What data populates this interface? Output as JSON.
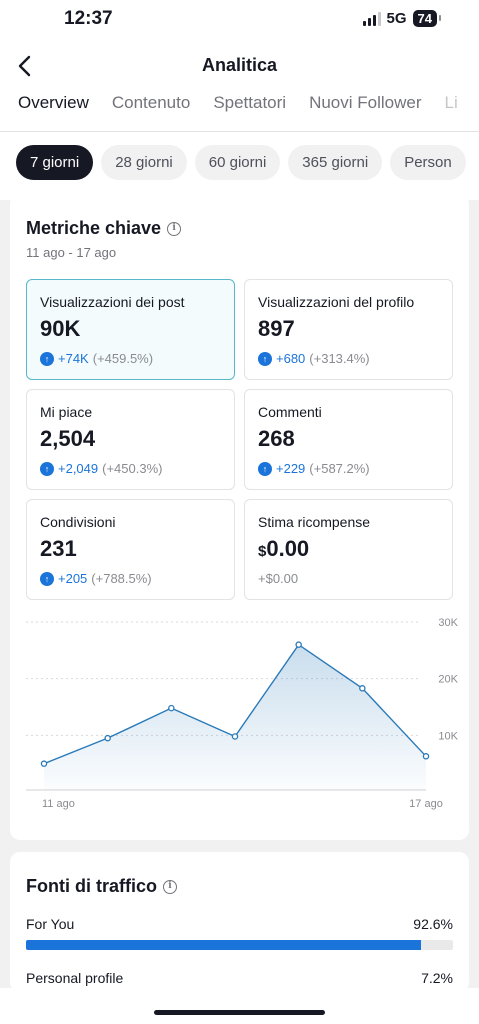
{
  "status": {
    "time": "12:37",
    "network": "5G",
    "battery": "74"
  },
  "header": {
    "title": "Analitica"
  },
  "tabs": [
    {
      "label": "Overview"
    },
    {
      "label": "Contenuto"
    },
    {
      "label": "Spettatori"
    },
    {
      "label": "Nuovi Follower"
    },
    {
      "label": "Li"
    }
  ],
  "ranges": [
    {
      "label": "7 giorni"
    },
    {
      "label": "28 giorni"
    },
    {
      "label": "60 giorni"
    },
    {
      "label": "365 giorni"
    },
    {
      "label": "Person"
    }
  ],
  "metrics_card": {
    "title": "Metriche chiave",
    "date_range": "11 ago - 17 ago",
    "items": [
      {
        "label": "Visualizzazioni dei post",
        "value": "90K",
        "delta": "+74K",
        "pct": "(+459.5%)"
      },
      {
        "label": "Visualizzazioni del profilo",
        "value": "897",
        "delta": "+680",
        "pct": "(+313.4%)"
      },
      {
        "label": "Mi piace",
        "value": "2,504",
        "delta": "+2,049",
        "pct": "(+450.3%)"
      },
      {
        "label": "Commenti",
        "value": "268",
        "delta": "+229",
        "pct": "(+587.2%)"
      },
      {
        "label": "Condivisioni",
        "value": "231",
        "delta": "+205",
        "pct": "(+788.5%)"
      },
      {
        "label": "Stima ricompense",
        "currency": "$",
        "value": "0.00",
        "delta": "+$0.00"
      }
    ]
  },
  "chart_data": {
    "type": "area",
    "x": [
      "11 ago",
      "12 ago",
      "13 ago",
      "14 ago",
      "15 ago",
      "16 ago",
      "17 ago"
    ],
    "values": [
      5000,
      9500,
      14800,
      9800,
      26000,
      18300,
      6300
    ],
    "xticks": [
      "11 ago",
      "17 ago"
    ],
    "yticks": [
      "30K",
      "20K",
      "10K"
    ],
    "ytick_values": [
      30000,
      20000,
      10000
    ],
    "ylim": [
      0,
      30000
    ],
    "grid": true,
    "color": "#2a7ab8"
  },
  "traffic_card": {
    "title": "Fonti di traffico",
    "rows": [
      {
        "label": "For You",
        "value": "92.6%",
        "fraction": 0.926
      },
      {
        "label": "Personal profile",
        "value": "7.2%"
      }
    ]
  }
}
